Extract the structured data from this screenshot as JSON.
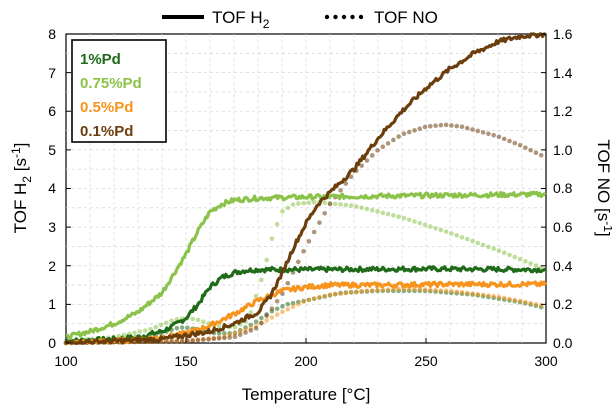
{
  "chart_data": {
    "type": "line",
    "xlabel": "Temperature [°C]",
    "ylabel_left": "TOF H",
    "ylabel_left_sub": "2",
    "ylabel_left_unit": " [s",
    "ylabel_left_sup": "-1",
    "ylabel_left_end": "]",
    "ylabel_right": "TOF NO [s",
    "ylabel_right_sup": "-1",
    "ylabel_right_end": "]",
    "xlim": [
      100,
      300
    ],
    "ylim_left": [
      0,
      8
    ],
    "ylim_right": [
      0,
      1.6
    ],
    "x_ticks": [
      100,
      150,
      200,
      250,
      300
    ],
    "y_left_ticks": [
      0,
      1,
      2,
      3,
      4,
      5,
      6,
      7,
      8
    ],
    "y_right_ticks": [
      "0.0",
      "0.2",
      "0.4",
      "0.6",
      "0.8",
      "1.0",
      "1.2",
      "1.4",
      "1.6"
    ],
    "x_tick_labels": [
      "100",
      "150",
      "200",
      "250",
      "300"
    ],
    "y_left_tick_labels": [
      "0",
      "1",
      "2",
      "3",
      "4",
      "5",
      "6",
      "7",
      "8"
    ],
    "grid": true,
    "legend_top": [
      {
        "label_main": "TOF H",
        "label_sub": "2",
        "style": "solid"
      },
      {
        "label_main": "TOF NO",
        "label_sub": "",
        "style": "dotted"
      }
    ],
    "legend_box_placement": "top-left",
    "series": [
      {
        "name": "1%Pd",
        "color": "#1f6b1a",
        "h2": [
          [
            100,
            0.05
          ],
          [
            120,
            0.1
          ],
          [
            130,
            0.15
          ],
          [
            140,
            0.3
          ],
          [
            145,
            0.45
          ],
          [
            150,
            0.65
          ],
          [
            155,
            1.0
          ],
          [
            160,
            1.45
          ],
          [
            165,
            1.7
          ],
          [
            170,
            1.82
          ],
          [
            175,
            1.88
          ],
          [
            180,
            1.9
          ],
          [
            200,
            1.9
          ],
          [
            250,
            1.92
          ],
          [
            300,
            1.9
          ]
        ],
        "no": [
          [
            100,
            0.0
          ],
          [
            125,
            0.01
          ],
          [
            135,
            0.03
          ],
          [
            142,
            0.06
          ],
          [
            147,
            0.08
          ],
          [
            150,
            0.08
          ],
          [
            155,
            0.07
          ],
          [
            162,
            0.05
          ],
          [
            170,
            0.05
          ],
          [
            178,
            0.1
          ],
          [
            185,
            0.16
          ],
          [
            192,
            0.2
          ],
          [
            200,
            0.22
          ],
          [
            215,
            0.26
          ],
          [
            230,
            0.27
          ],
          [
            250,
            0.27
          ],
          [
            270,
            0.25
          ],
          [
            290,
            0.21
          ],
          [
            300,
            0.18
          ]
        ]
      },
      {
        "name": "0.75%Pd",
        "color": "#8bc34a",
        "h2": [
          [
            100,
            0.15
          ],
          [
            110,
            0.3
          ],
          [
            120,
            0.5
          ],
          [
            130,
            0.8
          ],
          [
            140,
            1.3
          ],
          [
            145,
            1.8
          ],
          [
            150,
            2.3
          ],
          [
            155,
            2.9
          ],
          [
            160,
            3.4
          ],
          [
            165,
            3.6
          ],
          [
            170,
            3.7
          ],
          [
            180,
            3.75
          ],
          [
            200,
            3.78
          ],
          [
            250,
            3.82
          ],
          [
            300,
            3.85
          ]
        ],
        "no": [
          [
            100,
            0.01
          ],
          [
            120,
            0.03
          ],
          [
            135,
            0.07
          ],
          [
            145,
            0.12
          ],
          [
            150,
            0.13
          ],
          [
            155,
            0.12
          ],
          [
            162,
            0.09
          ],
          [
            170,
            0.08
          ],
          [
            176,
            0.12
          ],
          [
            182,
            0.35
          ],
          [
            186,
            0.55
          ],
          [
            190,
            0.68
          ],
          [
            195,
            0.72
          ],
          [
            205,
            0.73
          ],
          [
            220,
            0.71
          ],
          [
            240,
            0.65
          ],
          [
            260,
            0.57
          ],
          [
            280,
            0.48
          ],
          [
            300,
            0.38
          ]
        ]
      },
      {
        "name": "0.5%Pd",
        "color": "#f7941d",
        "h2": [
          [
            100,
            0.0
          ],
          [
            120,
            0.05
          ],
          [
            140,
            0.15
          ],
          [
            150,
            0.25
          ],
          [
            160,
            0.45
          ],
          [
            170,
            0.75
          ],
          [
            180,
            1.1
          ],
          [
            190,
            1.35
          ],
          [
            200,
            1.45
          ],
          [
            210,
            1.5
          ],
          [
            230,
            1.5
          ],
          [
            260,
            1.52
          ],
          [
            300,
            1.52
          ]
        ],
        "no": [
          [
            100,
            0.0
          ],
          [
            150,
            0.01
          ],
          [
            165,
            0.03
          ],
          [
            178,
            0.08
          ],
          [
            190,
            0.16
          ],
          [
            200,
            0.22
          ],
          [
            210,
            0.25
          ],
          [
            225,
            0.27
          ],
          [
            240,
            0.28
          ],
          [
            260,
            0.27
          ],
          [
            280,
            0.24
          ],
          [
            300,
            0.19
          ]
        ]
      },
      {
        "name": "0.1%Pd",
        "color": "#6b3e0e",
        "h2": [
          [
            100,
            0.0
          ],
          [
            140,
            0.1
          ],
          [
            160,
            0.3
          ],
          [
            170,
            0.5
          ],
          [
            180,
            0.8
          ],
          [
            185,
            1.2
          ],
          [
            190,
            1.8
          ],
          [
            195,
            2.5
          ],
          [
            200,
            3.1
          ],
          [
            205,
            3.6
          ],
          [
            210,
            3.9
          ],
          [
            220,
            4.5
          ],
          [
            230,
            5.3
          ],
          [
            240,
            6.0
          ],
          [
            250,
            6.6
          ],
          [
            260,
            7.1
          ],
          [
            270,
            7.5
          ],
          [
            280,
            7.8
          ],
          [
            290,
            7.95
          ],
          [
            300,
            8.0
          ]
        ],
        "no": [
          [
            100,
            0.0
          ],
          [
            150,
            0.01
          ],
          [
            170,
            0.03
          ],
          [
            180,
            0.08
          ],
          [
            190,
            0.25
          ],
          [
            200,
            0.5
          ],
          [
            210,
            0.72
          ],
          [
            220,
            0.88
          ],
          [
            230,
            1.0
          ],
          [
            240,
            1.08
          ],
          [
            250,
            1.12
          ],
          [
            258,
            1.13
          ],
          [
            265,
            1.12
          ],
          [
            280,
            1.07
          ],
          [
            290,
            1.02
          ],
          [
            300,
            0.96
          ]
        ]
      }
    ]
  }
}
